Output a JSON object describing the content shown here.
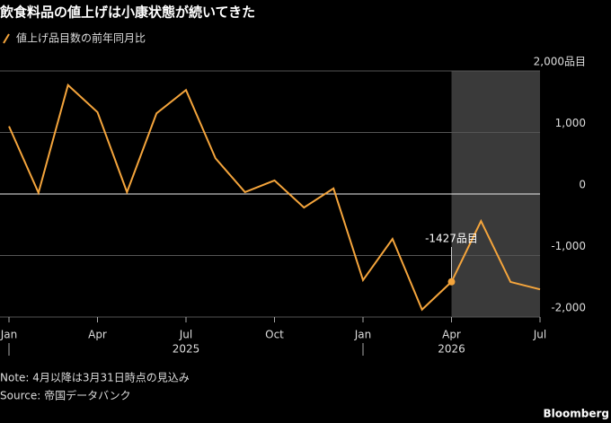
{
  "chart_data": {
    "type": "line",
    "title": "飲食料品の値上げは小康状態が続いてきた",
    "categories": [
      "Jan",
      null,
      null,
      "Apr",
      null,
      null,
      "Jul",
      null,
      null,
      "Oct",
      null,
      null,
      "Jan",
      null,
      null,
      "Apr",
      null,
      null,
      "Jul"
    ],
    "years": [
      "2025",
      "2026"
    ],
    "series": [
      {
        "name": "値上げ品目数の前年同月比",
        "color": "#f5a53c",
        "values": [
          1100,
          20,
          1770,
          1330,
          30,
          1310,
          1690,
          580,
          30,
          220,
          -220,
          90,
          -1400,
          -730,
          -1880,
          -1427,
          -440,
          -1430,
          -1550
        ]
      }
    ],
    "annotation": "-1427品目",
    "ylim": [
      -2000,
      2000
    ],
    "yticks": [
      {
        "value": 2000,
        "label": "2,000品目"
      },
      {
        "value": 1000,
        "label": "1,000"
      },
      0,
      {
        "value": -1000,
        "label": "-1,000"
      },
      {
        "value": -2000,
        "label": "-2,000"
      }
    ],
    "grid": true,
    "note": "Note: 4月以降は3月31日時点の見込み",
    "source": "Source: 帝国データバンク",
    "brand": "Bloomberg"
  }
}
